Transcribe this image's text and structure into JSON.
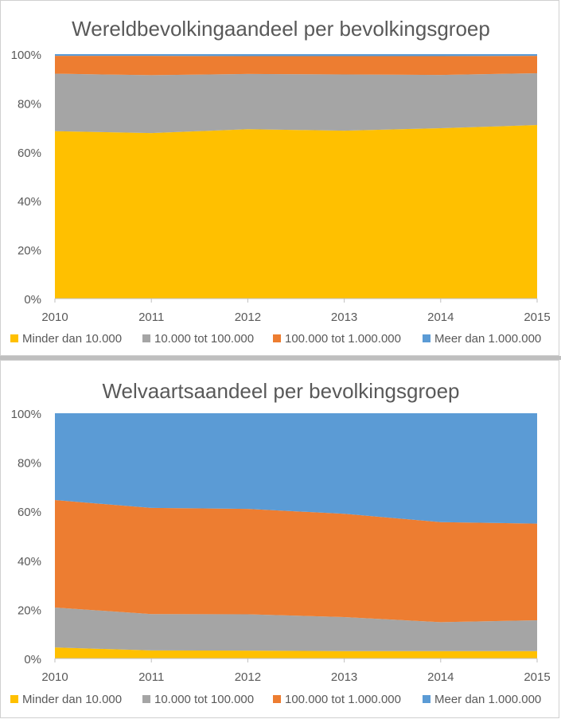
{
  "colors": {
    "minder_dan_10000": "#FFC000",
    "tussen_10000_100000": "#A5A5A5",
    "tussen_100000_1000000": "#ED7D31",
    "meer_dan_1000000": "#5B9BD5"
  },
  "chart_data": [
    {
      "type": "area",
      "stacked": true,
      "title": "Wereldbevolkingaandeel per bevolkingsgroep",
      "xlabel": "",
      "ylabel": "",
      "x": [
        "2010",
        "2011",
        "2012",
        "2013",
        "2014",
        "2015"
      ],
      "ylim": [
        0,
        100
      ],
      "yticks": [
        "0%",
        "20%",
        "40%",
        "60%",
        "80%",
        "100%"
      ],
      "grid": false,
      "legend_position": "bottom",
      "series": [
        {
          "name": "Minder dan 10.000",
          "color": "#FFC000",
          "values": [
            68.5,
            67.7,
            69.3,
            68.7,
            69.7,
            71.0
          ]
        },
        {
          "name": "10.000 tot 100.000",
          "color": "#A5A5A5",
          "values": [
            23.5,
            23.7,
            22.6,
            23.0,
            21.8,
            21.2
          ]
        },
        {
          "name": "100.000 tot 1.000.000",
          "color": "#ED7D31",
          "values": [
            7.3,
            7.9,
            7.3,
            7.5,
            7.7,
            7.1
          ]
        },
        {
          "name": "Meer dan 1.000.000",
          "color": "#5B9BD5",
          "values": [
            0.7,
            0.7,
            0.8,
            0.8,
            0.8,
            0.7
          ]
        }
      ]
    },
    {
      "type": "area",
      "stacked": true,
      "title": "Welvaartsaandeel per bevolkingsgroep",
      "xlabel": "",
      "ylabel": "",
      "x": [
        "2010",
        "2011",
        "2012",
        "2013",
        "2014",
        "2015"
      ],
      "ylim": [
        0,
        100
      ],
      "yticks": [
        "0%",
        "20%",
        "40%",
        "60%",
        "80%",
        "100%"
      ],
      "grid": false,
      "legend_position": "bottom",
      "series": [
        {
          "name": "Minder dan 10.000",
          "color": "#FFC000",
          "values": [
            4.5,
            3.3,
            3.2,
            3.0,
            3.0,
            3.0
          ]
        },
        {
          "name": "10.000 tot 100.000",
          "color": "#A5A5A5",
          "values": [
            16.3,
            14.8,
            14.8,
            13.9,
            11.8,
            12.6
          ]
        },
        {
          "name": "100.000 tot 1.000.000",
          "color": "#ED7D31",
          "values": [
            43.8,
            43.3,
            43.0,
            42.1,
            40.8,
            39.4
          ]
        },
        {
          "name": "Meer dan 1.000.000",
          "color": "#5B9BD5",
          "values": [
            35.4,
            38.6,
            39.0,
            41.0,
            44.4,
            45.0
          ]
        }
      ]
    }
  ]
}
